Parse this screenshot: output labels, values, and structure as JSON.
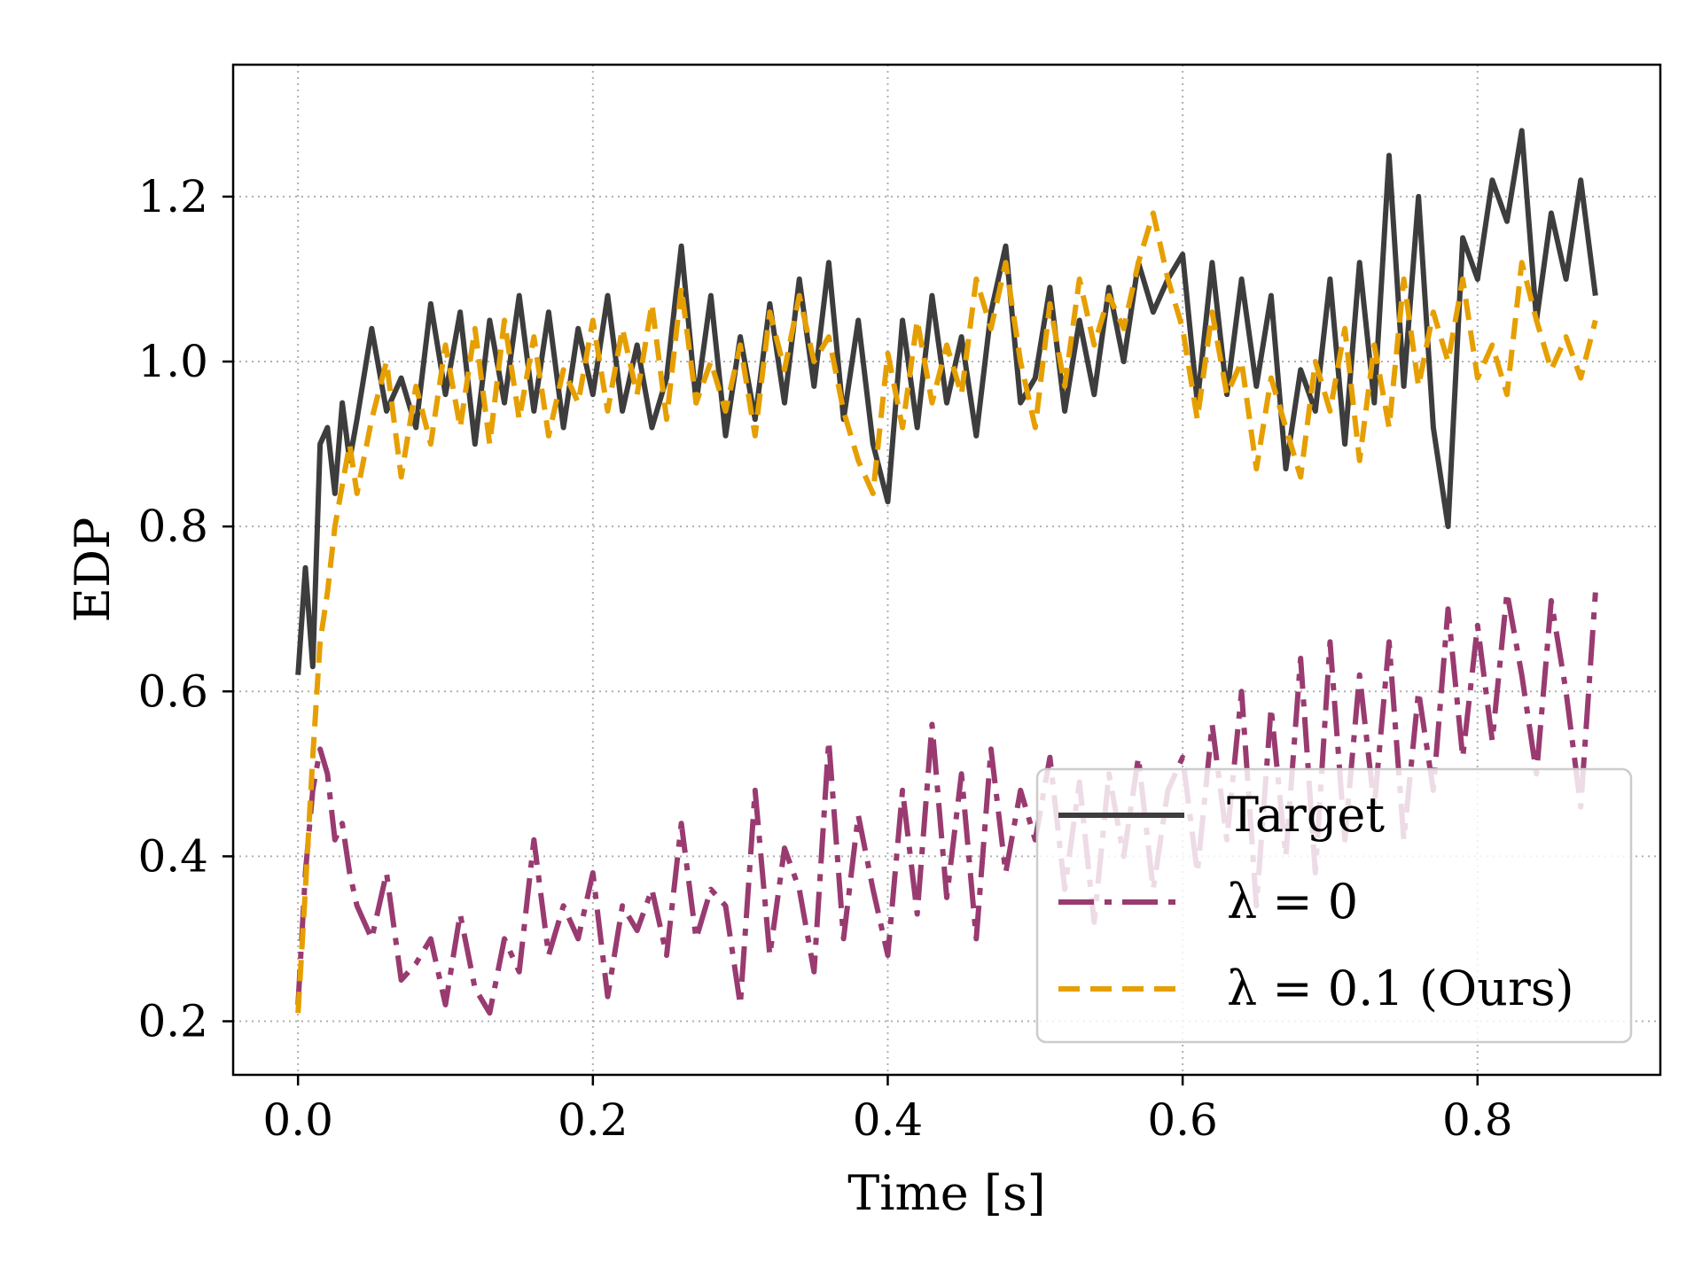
{
  "chart_data": {
    "type": "line",
    "title": "",
    "xlabel": "Time [s]",
    "ylabel": "EDP",
    "xlim": [
      -0.044,
      0.924
    ],
    "ylim": [
      0.135,
      1.36
    ],
    "xticks": [
      0.0,
      0.2,
      0.4,
      0.6,
      0.8
    ],
    "xtick_labels": [
      "0.0",
      "0.2",
      "0.4",
      "0.6",
      "0.8"
    ],
    "yticks": [
      0.2,
      0.4,
      0.6,
      0.8,
      1.0,
      1.2
    ],
    "ytick_labels": [
      "0.2",
      "0.4",
      "0.6",
      "0.8",
      "1.0",
      "1.2"
    ],
    "grid": true,
    "legend_position": "lower-right",
    "series": [
      {
        "name": "Target",
        "legend_label": "Target",
        "color": "#3d3d3d",
        "style": "solid",
        "x": [
          0.0,
          0.005,
          0.01,
          0.015,
          0.02,
          0.025,
          0.03,
          0.035,
          0.04,
          0.05,
          0.06,
          0.07,
          0.08,
          0.09,
          0.1,
          0.11,
          0.12,
          0.13,
          0.14,
          0.15,
          0.16,
          0.17,
          0.18,
          0.19,
          0.2,
          0.21,
          0.22,
          0.23,
          0.24,
          0.25,
          0.26,
          0.27,
          0.28,
          0.29,
          0.3,
          0.31,
          0.32,
          0.33,
          0.34,
          0.35,
          0.36,
          0.37,
          0.38,
          0.39,
          0.4,
          0.41,
          0.42,
          0.43,
          0.44,
          0.45,
          0.46,
          0.47,
          0.48,
          0.49,
          0.5,
          0.51,
          0.52,
          0.53,
          0.54,
          0.55,
          0.56,
          0.57,
          0.58,
          0.59,
          0.6,
          0.61,
          0.62,
          0.63,
          0.64,
          0.65,
          0.66,
          0.67,
          0.68,
          0.69,
          0.7,
          0.71,
          0.72,
          0.73,
          0.74,
          0.75,
          0.76,
          0.77,
          0.78,
          0.79,
          0.8,
          0.81,
          0.82,
          0.83,
          0.84,
          0.85,
          0.86,
          0.87,
          0.88
        ],
        "y": [
          0.62,
          0.75,
          0.63,
          0.9,
          0.92,
          0.84,
          0.95,
          0.88,
          0.93,
          1.04,
          0.94,
          0.98,
          0.92,
          1.07,
          0.96,
          1.06,
          0.9,
          1.05,
          0.95,
          1.08,
          0.94,
          1.06,
          0.92,
          1.04,
          0.96,
          1.08,
          0.94,
          1.02,
          0.92,
          0.98,
          1.14,
          0.95,
          1.08,
          0.91,
          1.03,
          0.93,
          1.07,
          0.95,
          1.1,
          0.97,
          1.12,
          0.93,
          1.05,
          0.9,
          0.83,
          1.05,
          0.92,
          1.08,
          0.95,
          1.03,
          0.91,
          1.06,
          1.14,
          0.95,
          0.98,
          1.09,
          0.94,
          1.05,
          0.96,
          1.09,
          1.0,
          1.12,
          1.06,
          1.1,
          1.13,
          0.95,
          1.12,
          0.96,
          1.1,
          0.97,
          1.08,
          0.87,
          0.99,
          0.94,
          1.1,
          0.9,
          1.12,
          0.95,
          1.25,
          0.97,
          1.2,
          0.92,
          0.8,
          1.15,
          1.1,
          1.22,
          1.17,
          1.28,
          1.05,
          1.18,
          1.1,
          1.22,
          1.08
        ]
      },
      {
        "name": "lambda = 0",
        "legend_label": "λ = 0",
        "color": "#993b70",
        "style": "dashdot",
        "x": [
          0.0,
          0.005,
          0.01,
          0.015,
          0.02,
          0.025,
          0.03,
          0.035,
          0.04,
          0.05,
          0.06,
          0.07,
          0.08,
          0.09,
          0.1,
          0.11,
          0.12,
          0.13,
          0.14,
          0.15,
          0.16,
          0.17,
          0.18,
          0.19,
          0.2,
          0.21,
          0.22,
          0.23,
          0.24,
          0.25,
          0.26,
          0.27,
          0.28,
          0.29,
          0.3,
          0.31,
          0.32,
          0.33,
          0.34,
          0.35,
          0.36,
          0.37,
          0.38,
          0.39,
          0.4,
          0.41,
          0.42,
          0.43,
          0.44,
          0.45,
          0.46,
          0.47,
          0.48,
          0.49,
          0.5,
          0.51,
          0.52,
          0.53,
          0.54,
          0.55,
          0.56,
          0.57,
          0.58,
          0.59,
          0.6,
          0.61,
          0.62,
          0.63,
          0.64,
          0.65,
          0.66,
          0.67,
          0.68,
          0.69,
          0.7,
          0.71,
          0.72,
          0.73,
          0.74,
          0.75,
          0.76,
          0.77,
          0.78,
          0.79,
          0.8,
          0.81,
          0.82,
          0.83,
          0.84,
          0.85,
          0.86,
          0.87,
          0.88
        ],
        "y": [
          0.22,
          0.38,
          0.48,
          0.53,
          0.5,
          0.42,
          0.44,
          0.38,
          0.34,
          0.3,
          0.38,
          0.25,
          0.27,
          0.3,
          0.22,
          0.33,
          0.24,
          0.21,
          0.3,
          0.26,
          0.42,
          0.28,
          0.34,
          0.3,
          0.38,
          0.23,
          0.34,
          0.31,
          0.36,
          0.28,
          0.44,
          0.3,
          0.36,
          0.34,
          0.22,
          0.48,
          0.28,
          0.41,
          0.36,
          0.26,
          0.54,
          0.3,
          0.45,
          0.36,
          0.28,
          0.48,
          0.33,
          0.56,
          0.35,
          0.5,
          0.3,
          0.53,
          0.38,
          0.48,
          0.42,
          0.52,
          0.36,
          0.49,
          0.32,
          0.5,
          0.4,
          0.52,
          0.36,
          0.48,
          0.52,
          0.38,
          0.56,
          0.42,
          0.6,
          0.34,
          0.58,
          0.4,
          0.64,
          0.38,
          0.66,
          0.42,
          0.62,
          0.46,
          0.66,
          0.42,
          0.6,
          0.48,
          0.7,
          0.52,
          0.68,
          0.54,
          0.72,
          0.62,
          0.5,
          0.71,
          0.6,
          0.46,
          0.72
        ]
      },
      {
        "name": "lambda = 0.1 (Ours)",
        "legend_label": "λ = 0.1 (Ours)",
        "color": "#e69f00",
        "style": "dashed",
        "x": [
          0.0,
          0.005,
          0.01,
          0.015,
          0.02,
          0.025,
          0.03,
          0.035,
          0.04,
          0.05,
          0.06,
          0.07,
          0.08,
          0.09,
          0.1,
          0.11,
          0.12,
          0.13,
          0.14,
          0.15,
          0.16,
          0.17,
          0.18,
          0.19,
          0.2,
          0.21,
          0.22,
          0.23,
          0.24,
          0.25,
          0.26,
          0.27,
          0.28,
          0.29,
          0.3,
          0.31,
          0.32,
          0.33,
          0.34,
          0.35,
          0.36,
          0.37,
          0.38,
          0.39,
          0.4,
          0.41,
          0.42,
          0.43,
          0.44,
          0.45,
          0.46,
          0.47,
          0.48,
          0.49,
          0.5,
          0.51,
          0.52,
          0.53,
          0.54,
          0.55,
          0.56,
          0.57,
          0.58,
          0.59,
          0.6,
          0.61,
          0.62,
          0.63,
          0.64,
          0.65,
          0.66,
          0.67,
          0.68,
          0.69,
          0.7,
          0.71,
          0.72,
          0.73,
          0.74,
          0.75,
          0.76,
          0.77,
          0.78,
          0.79,
          0.8,
          0.81,
          0.82,
          0.83,
          0.84,
          0.85,
          0.86,
          0.87,
          0.88
        ],
        "y": [
          0.21,
          0.36,
          0.52,
          0.66,
          0.72,
          0.8,
          0.85,
          0.9,
          0.84,
          0.93,
          1.0,
          0.86,
          0.97,
          0.9,
          1.02,
          0.92,
          1.04,
          0.9,
          1.05,
          0.93,
          1.03,
          0.91,
          0.99,
          0.95,
          1.05,
          0.94,
          1.04,
          0.96,
          1.07,
          0.93,
          1.09,
          0.95,
          1.0,
          0.94,
          1.02,
          0.91,
          1.06,
          0.99,
          1.08,
          1.0,
          1.03,
          0.94,
          0.88,
          0.84,
          1.01,
          0.92,
          1.05,
          0.95,
          1.02,
          0.96,
          1.1,
          1.04,
          1.12,
          1.0,
          0.92,
          1.07,
          0.97,
          1.1,
          1.02,
          1.08,
          1.04,
          1.12,
          1.18,
          1.1,
          1.04,
          0.93,
          1.06,
          0.96,
          1.0,
          0.87,
          0.98,
          0.92,
          0.86,
          1.0,
          0.94,
          1.04,
          0.88,
          1.02,
          0.92,
          1.1,
          0.97,
          1.06,
          1.0,
          1.1,
          0.98,
          1.02,
          0.96,
          1.12,
          1.05,
          0.99,
          1.03,
          0.98,
          1.05
        ]
      }
    ]
  }
}
